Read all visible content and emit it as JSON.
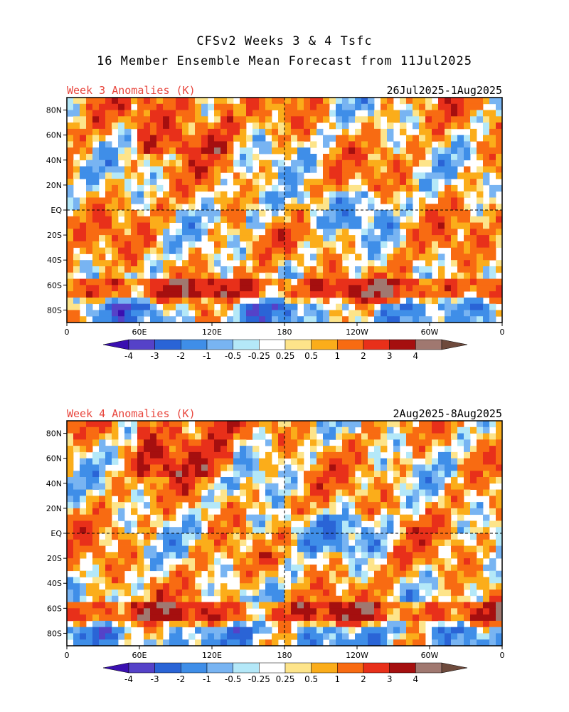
{
  "title_line1": "CFSv2 Weeks 3 & 4 Tsfc",
  "title_line2": "16 Member Ensemble Mean Forecast from 11Jul2025",
  "panels": [
    {
      "label": "Week 3 Anomalies (K)",
      "date_range": "26Jul2025-1Aug2025",
      "seed": 3
    },
    {
      "label": "Week 4 Anomalies (K)",
      "date_range": "2Aug2025-8Aug2025",
      "seed": 4
    }
  ],
  "lat_labels": [
    "80N",
    "60N",
    "40N",
    "20N",
    "EQ",
    "20S",
    "40S",
    "60S",
    "80S"
  ],
  "lon_labels": [
    "0",
    "60E",
    "120E",
    "180",
    "120W",
    "60W",
    "0"
  ],
  "colorbar": {
    "labels": [
      "-4",
      "-3",
      "-2",
      "-1",
      "-0.5",
      "-0.25",
      "0.25",
      "0.5",
      "1",
      "2",
      "3",
      "4"
    ],
    "colors": [
      "#3a0fb0",
      "#5542c8",
      "#2a64d6",
      "#3f8ee8",
      "#78b4f2",
      "#b4e8f8",
      "#ffffff",
      "#fde48a",
      "#fbad1a",
      "#f86b12",
      "#e8301a",
      "#a50f0f",
      "#a07870",
      "#6e4a3c"
    ]
  },
  "colors": {
    "panel_label": "#e8453c"
  }
}
